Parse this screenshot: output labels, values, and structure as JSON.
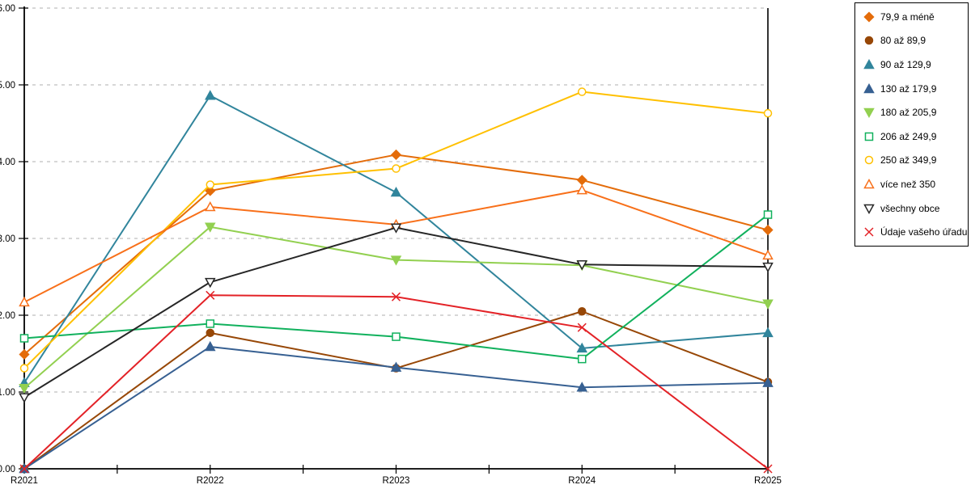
{
  "chart_data": {
    "type": "line",
    "categories": [
      "R2021",
      "R2022",
      "R2023",
      "R2024",
      "R2025"
    ],
    "y_axis": {
      "min": 0,
      "max": 6,
      "step": 1,
      "tick_labels": [
        "0.00",
        "1.00",
        "2.00",
        "3.00",
        "4.00",
        "5.00",
        "6.00"
      ],
      "grid": "dashed"
    },
    "x_axis": {
      "minor_ticks_between_categories": true
    },
    "legend_position": "top-right",
    "series": [
      {
        "name": "79,9 a méně",
        "color": "#E46C0A",
        "marker": "diamond",
        "hollow": false,
        "values": [
          1.49,
          3.62,
          4.09,
          3.76,
          3.11
        ]
      },
      {
        "name": "80 až 89,9",
        "color": "#974706",
        "marker": "circle",
        "hollow": false,
        "values": [
          0.0,
          1.77,
          1.31,
          2.05,
          1.13
        ]
      },
      {
        "name": "90 až 129,9",
        "color": "#31859C",
        "marker": "triangle-up",
        "hollow": false,
        "values": [
          1.12,
          4.86,
          3.6,
          1.57,
          1.77
        ]
      },
      {
        "name": "130 až 179,9",
        "color": "#376092",
        "marker": "triangle-up",
        "hollow": false,
        "values": [
          0.0,
          1.59,
          1.32,
          1.06,
          1.12
        ]
      },
      {
        "name": "180 až 205,9",
        "color": "#92D050",
        "marker": "triangle-down",
        "hollow": false,
        "values": [
          1.05,
          3.15,
          2.72,
          2.65,
          2.15
        ]
      },
      {
        "name": "206 až 249,9",
        "color": "#11B15D",
        "marker": "square",
        "hollow": true,
        "values": [
          1.7,
          1.89,
          1.72,
          1.43,
          3.31
        ]
      },
      {
        "name": "250 až 349,9",
        "color": "#FFC000",
        "marker": "circle",
        "hollow": true,
        "values": [
          1.31,
          3.7,
          3.91,
          4.91,
          4.63
        ]
      },
      {
        "name": "více než 350",
        "color": "#F8701A",
        "marker": "triangle-up",
        "hollow": true,
        "values": [
          2.17,
          3.41,
          3.18,
          3.63,
          2.78
        ]
      },
      {
        "name": "všechny obce",
        "color": "#262626",
        "marker": "triangle-down",
        "hollow": true,
        "values": [
          0.93,
          2.43,
          3.14,
          2.66,
          2.63
        ]
      },
      {
        "name": "Údaje vašeho úřadu",
        "color": "#E32227",
        "marker": "x",
        "hollow": true,
        "values": [
          0.0,
          2.26,
          2.24,
          1.84,
          0.0
        ]
      }
    ]
  },
  "colors": {
    "background": "#FFFFFF",
    "gridline": "#BFBFBF",
    "axis": "#000000",
    "legend_border": "#000000"
  }
}
